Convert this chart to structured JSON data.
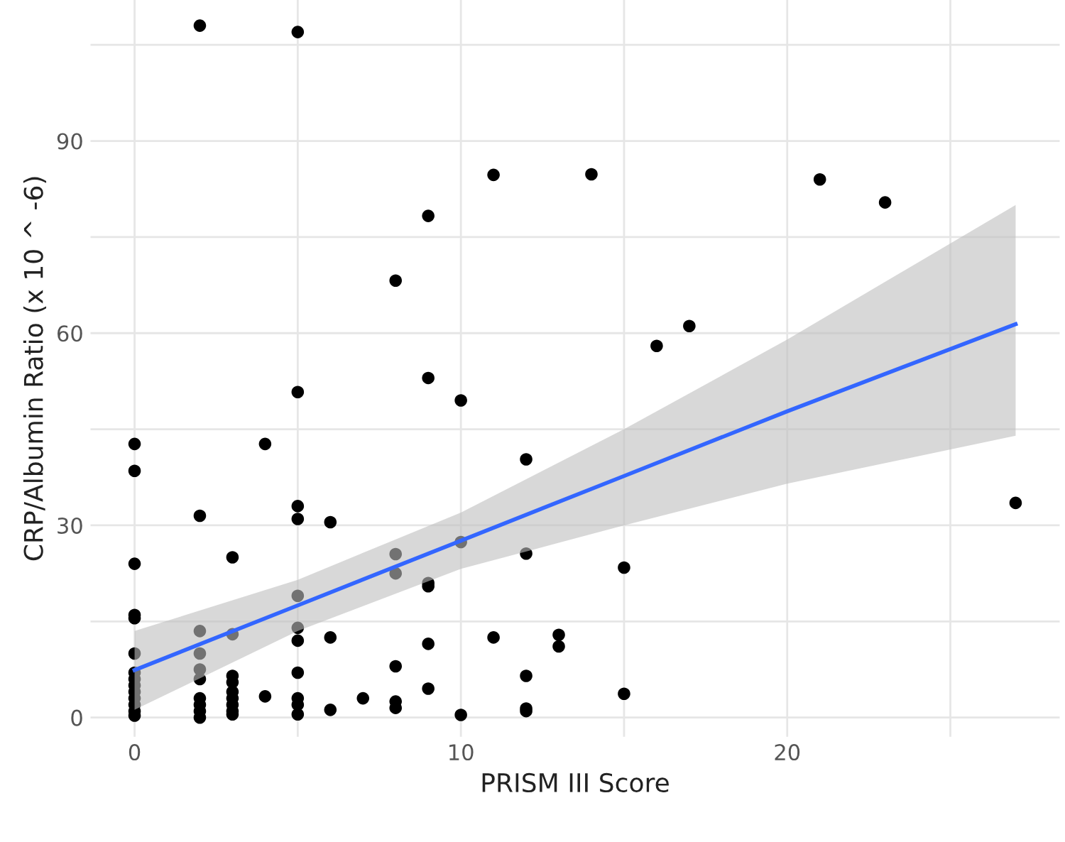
{
  "chart_data": {
    "type": "scatter",
    "xlabel": "PRISM III Score",
    "ylabel": "CRP/Albumin Ratio (x 10 ^ -6)",
    "xlim": [
      -1.35,
      28.35
    ],
    "ylim": [
      -3,
      112
    ],
    "xticks": [
      0,
      {
        "value": 5,
        "label": null
      },
      10,
      {
        "value": 15,
        "label": null
      },
      20,
      {
        "value": 25,
        "label": null
      }
    ],
    "yticks": [
      0,
      {
        "value": 15,
        "label": null
      },
      30,
      {
        "value": 45,
        "label": null
      },
      60,
      {
        "value": 75,
        "label": null
      },
      90,
      {
        "value": 105,
        "label": null
      }
    ],
    "grid": true,
    "series": [
      {
        "color": "#000000",
        "marker": "circle",
        "x": [
          0,
          0,
          0,
          0,
          0,
          0,
          0,
          0,
          0,
          0,
          0,
          0,
          0,
          0,
          2,
          2,
          2,
          2,
          2,
          2,
          2,
          2,
          2,
          2,
          3,
          3,
          3,
          3,
          3,
          3,
          3,
          3,
          3,
          4,
          4,
          5,
          5,
          5,
          5,
          5,
          5,
          5,
          5,
          5,
          5,
          5,
          6,
          6,
          6,
          7,
          8,
          8,
          8,
          8,
          8,
          8,
          9,
          9,
          9,
          9,
          9,
          9,
          10,
          10,
          10,
          11,
          11,
          12,
          12,
          12,
          12,
          12,
          13,
          13,
          14,
          15,
          15,
          16,
          17,
          21,
          23,
          27
        ],
        "values": [
          42.7,
          38.5,
          24,
          16,
          15.5,
          10,
          7,
          6,
          5,
          4,
          3,
          2,
          1,
          0.3,
          108,
          31.5,
          13.5,
          10,
          7.5,
          6,
          3,
          2,
          1,
          0,
          25,
          13,
          6.5,
          5.5,
          4,
          3,
          2,
          1,
          0.5,
          42.7,
          3.3,
          107,
          50.8,
          33,
          31,
          19,
          14,
          12,
          7,
          3,
          2,
          0.5,
          30.5,
          12.5,
          1.2,
          3,
          68.2,
          25.5,
          22.5,
          8,
          2.5,
          1.5,
          78.3,
          53,
          21,
          20.5,
          11.5,
          4.5,
          49.5,
          27.4,
          0.4,
          84.7,
          12.5,
          40.3,
          25.6,
          6.5,
          1.4,
          1,
          12.9,
          11.1,
          84.8,
          23.4,
          3.7,
          58,
          61.1,
          84,
          80.4,
          33.5
        ]
      },
      {
        "type": "line",
        "color": "#3366ff",
        "line_style": "solid",
        "marker": "none",
        "x": [
          0,
          5,
          10,
          15,
          20,
          27
        ],
        "values": [
          7.4,
          17.5,
          27.6,
          37.7,
          47.8,
          61.4
        ],
        "lower": [
          1.2,
          13.5,
          23.2,
          30,
          36.5,
          44
        ],
        "upper": [
          13.5,
          21.5,
          32,
          45,
          59,
          80
        ]
      }
    ]
  }
}
